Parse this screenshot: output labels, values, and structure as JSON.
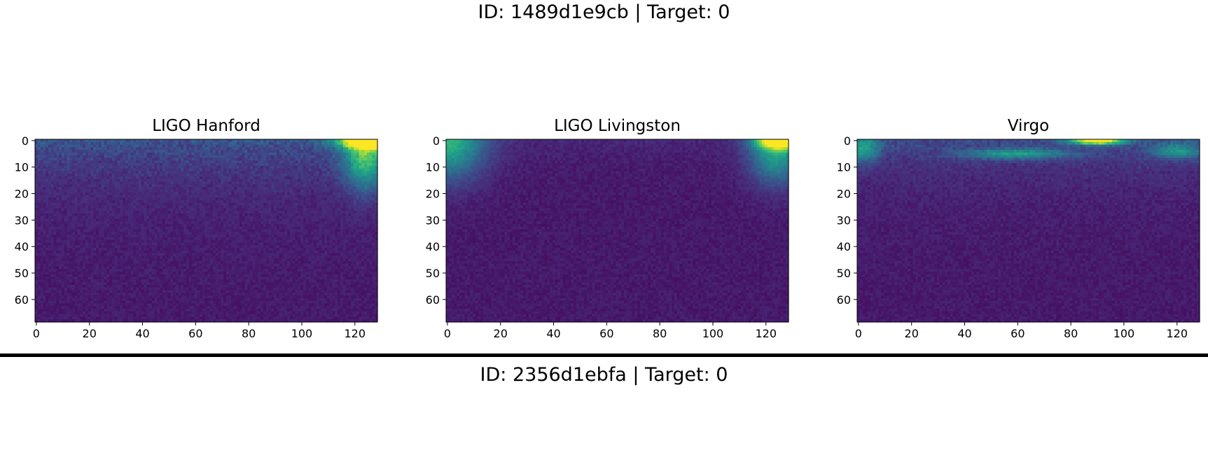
{
  "figures": [
    {
      "title": "ID: 1489d1e9cb | Target: 0",
      "chart_data": [
        {
          "type": "heatmap",
          "title": "LIGO Hanford",
          "colormap": "viridis",
          "n_cols": 129,
          "n_rows": 69,
          "xlim": [
            0,
            128
          ],
          "ylim": [
            68,
            0
          ],
          "xticks": [
            0,
            20,
            40,
            60,
            80,
            100,
            120
          ],
          "yticks": [
            0,
            10,
            20,
            30,
            40,
            50,
            60
          ],
          "hotspots": [
            {
              "x": 126,
              "y": 0,
              "value": 0.95,
              "rx": 12,
              "ry": 3
            },
            {
              "x": 124,
              "y": 6,
              "value": 0.55,
              "rx": 8,
              "ry": 12
            }
          ],
          "band": {
            "value": 0.28,
            "decay_rows": 14
          }
        },
        {
          "type": "heatmap",
          "title": "LIGO Livingston",
          "colormap": "viridis",
          "n_cols": 129,
          "n_rows": 69,
          "xlim": [
            0,
            128
          ],
          "ylim": [
            68,
            0
          ],
          "xticks": [
            0,
            20,
            40,
            60,
            80,
            100,
            120
          ],
          "yticks": [
            0,
            10,
            20,
            30,
            40,
            50,
            60
          ],
          "hotspots": [
            {
              "x": 0,
              "y": 0,
              "value": 0.55,
              "rx": 14,
              "ry": 14
            },
            {
              "x": 126,
              "y": 0,
              "value": 0.95,
              "rx": 9,
              "ry": 3
            },
            {
              "x": 124,
              "y": 4,
              "value": 0.5,
              "rx": 10,
              "ry": 12
            }
          ],
          "band": {
            "value": 0.06,
            "decay_rows": 6
          }
        },
        {
          "type": "heatmap",
          "title": "Virgo",
          "colormap": "viridis",
          "n_cols": 129,
          "n_rows": 69,
          "xlim": [
            0,
            128
          ],
          "ylim": [
            68,
            0
          ],
          "xticks": [
            0,
            20,
            40,
            60,
            80,
            100,
            120
          ],
          "yticks": [
            0,
            10,
            20,
            30,
            40,
            50,
            60
          ],
          "hotspots": [
            {
              "x": 90,
              "y": 0,
              "value": 0.95,
              "rx": 10,
              "ry": 1.5
            },
            {
              "x": 60,
              "y": 5,
              "value": 0.4,
              "rx": 20,
              "ry": 2
            },
            {
              "x": 2,
              "y": 3,
              "value": 0.4,
              "rx": 6,
              "ry": 5
            },
            {
              "x": 120,
              "y": 4,
              "value": 0.35,
              "rx": 10,
              "ry": 3
            }
          ],
          "band": {
            "value": 0.22,
            "decay_rows": 12
          }
        }
      ]
    },
    {
      "title": "ID: 2356d1ebfa | Target: 0"
    }
  ]
}
